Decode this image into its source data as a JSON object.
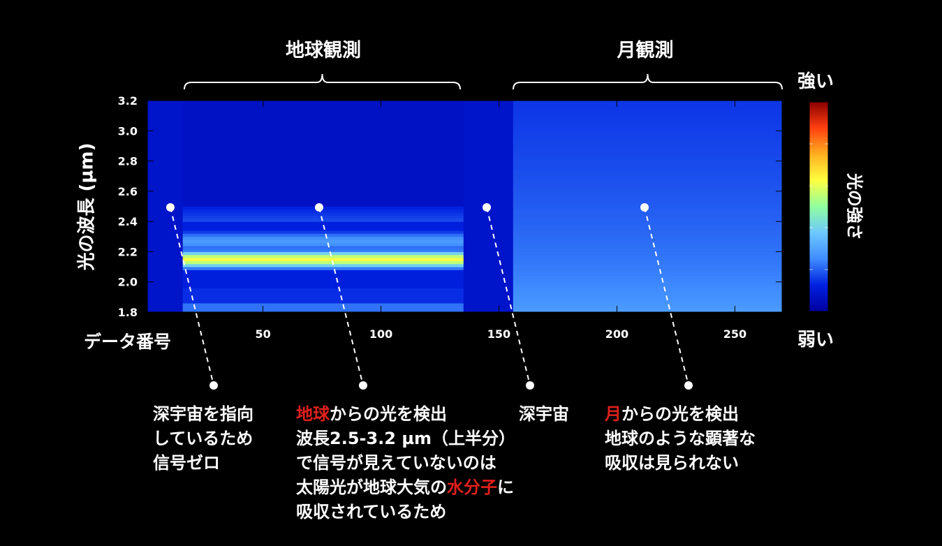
{
  "groups": {
    "earth": "地球観測",
    "moon": "月観測"
  },
  "colorbar": {
    "high": "強い",
    "low": "弱い",
    "label": "光の強さ"
  },
  "chart_data": {
    "type": "heatmap",
    "xlabel": "データ番号",
    "ylabel": "光の波長 (µm)",
    "xlim": [
      1,
      270
    ],
    "ylim": [
      1.8,
      3.2
    ],
    "x_ticks": [
      50,
      100,
      150,
      200,
      250
    ],
    "y_ticks": [
      "1.8",
      "2.0",
      "2.2",
      "2.4",
      "2.6",
      "2.8",
      "3.0",
      "3.2"
    ],
    "grid": true,
    "segments": [
      {
        "x_range": [
          1,
          16
        ],
        "description": "deep space",
        "max_intensity": 0.08
      },
      {
        "x_range": [
          16,
          135
        ],
        "description": "earth",
        "peak_wavelength": 2.15,
        "peak_intensity": 0.62,
        "bands": [
          [
            1.8,
            2.5
          ]
        ]
      },
      {
        "x_range": [
          135,
          156
        ],
        "description": "deep space",
        "max_intensity": 0.08
      },
      {
        "x_range": [
          156,
          270
        ],
        "description": "moon",
        "intensity_at_1.8": 0.3,
        "intensity_at_3.2": 0.15
      }
    ],
    "colorscale": [
      "#0000a0",
      "#0020e0",
      "#3f8cff",
      "#6ec8ff",
      "#8fff9f",
      "#ffff40",
      "#ffb020",
      "#ff4010",
      "#8b0000"
    ]
  },
  "annotations": [
    {
      "lines": [
        [
          "深宇宙を指向"
        ],
        [
          "しているため"
        ],
        [
          "信号ゼロ"
        ]
      ]
    },
    {
      "lines": [
        [
          {
            "t": "地球",
            "red": true
          },
          {
            "t": "からの光を検出"
          }
        ],
        [
          "波長2.5-3.2 µm（上半分）"
        ],
        [
          "で信号が見えていないのは"
        ],
        [
          {
            "t": "太陽光が地球大気の"
          },
          {
            "t": "水分子",
            "red": true
          },
          {
            "t": "に"
          }
        ],
        [
          "吸収されているため"
        ]
      ]
    },
    {
      "lines": [
        [
          "深宇宙"
        ]
      ]
    },
    {
      "lines": [
        [
          {
            "t": "月",
            "red": true
          },
          {
            "t": "からの光を検出"
          }
        ],
        [
          "地球のような顕著な"
        ],
        [
          "吸収は見られない"
        ]
      ]
    }
  ]
}
